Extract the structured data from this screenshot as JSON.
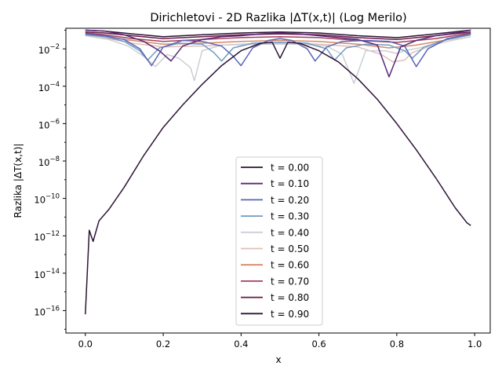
{
  "chart_data": {
    "type": "line",
    "title": "Dirichletovi - 2D Razlika |ΔT(x,t)| (Log Merilo)",
    "xlabel": "x",
    "ylabel": "Razlika |ΔT(x,t)|",
    "yscale": "log",
    "xlim": [
      -0.05,
      1.04
    ],
    "ylim_exp": [
      -17.2,
      -0.9
    ],
    "xticks": [
      {
        "v": 0.0,
        "label": "0.0"
      },
      {
        "v": 0.2,
        "label": "0.2"
      },
      {
        "v": 0.4,
        "label": "0.4"
      },
      {
        "v": 0.6,
        "label": "0.6"
      },
      {
        "v": 0.8,
        "label": "0.8"
      },
      {
        "v": 1.0,
        "label": "1.0"
      }
    ],
    "yticks": [
      {
        "exp": -16,
        "label": "10",
        "sup": "−16"
      },
      {
        "exp": -14,
        "label": "10",
        "sup": "−14"
      },
      {
        "exp": -12,
        "label": "10",
        "sup": "−12"
      },
      {
        "exp": -10,
        "label": "10",
        "sup": "−10"
      },
      {
        "exp": -8,
        "label": "10",
        "sup": "−8"
      },
      {
        "exp": -6,
        "label": "10",
        "sup": "−6"
      },
      {
        "exp": -4,
        "label": "10",
        "sup": "−4"
      },
      {
        "exp": -2,
        "label": "10",
        "sup": "−2"
      }
    ],
    "grid": false,
    "legend_position": "lower-center",
    "series": [
      {
        "name": "t = 0.00",
        "color": "#2d1436",
        "points": [
          [
            0.0,
            -16.2
          ],
          [
            0.01,
            -11.7
          ],
          [
            0.02,
            -12.3
          ],
          [
            0.035,
            -11.2
          ],
          [
            0.06,
            -10.6
          ],
          [
            0.1,
            -9.4
          ],
          [
            0.15,
            -7.7
          ],
          [
            0.2,
            -6.2
          ],
          [
            0.25,
            -5.0
          ],
          [
            0.3,
            -3.9
          ],
          [
            0.35,
            -2.9
          ],
          [
            0.4,
            -2.1
          ],
          [
            0.45,
            -1.7
          ],
          [
            0.48,
            -1.65
          ],
          [
            0.5,
            -2.5
          ],
          [
            0.52,
            -1.65
          ],
          [
            0.55,
            -1.7
          ],
          [
            0.6,
            -2.1
          ],
          [
            0.65,
            -2.7
          ],
          [
            0.7,
            -3.6
          ],
          [
            0.75,
            -4.7
          ],
          [
            0.8,
            -6.0
          ],
          [
            0.85,
            -7.4
          ],
          [
            0.9,
            -8.9
          ],
          [
            0.95,
            -10.5
          ],
          [
            0.98,
            -11.3
          ],
          [
            0.99,
            -11.45
          ]
        ]
      },
      {
        "name": "t = 0.10",
        "color": "#5a2778",
        "points": [
          [
            0.0,
            -1.0
          ],
          [
            0.05,
            -1.05
          ],
          [
            0.1,
            -1.25
          ],
          [
            0.15,
            -1.6
          ],
          [
            0.19,
            -2.1
          ],
          [
            0.22,
            -2.65
          ],
          [
            0.25,
            -1.85
          ],
          [
            0.3,
            -1.5
          ],
          [
            0.35,
            -1.35
          ],
          [
            0.4,
            -1.3
          ],
          [
            0.45,
            -1.2
          ],
          [
            0.5,
            -1.15
          ],
          [
            0.55,
            -1.2
          ],
          [
            0.6,
            -1.3
          ],
          [
            0.65,
            -1.4
          ],
          [
            0.7,
            -1.5
          ],
          [
            0.75,
            -1.8
          ],
          [
            0.78,
            -3.5
          ],
          [
            0.81,
            -1.9
          ],
          [
            0.85,
            -1.55
          ],
          [
            0.9,
            -1.3
          ],
          [
            0.95,
            -1.15
          ],
          [
            0.99,
            -1.0
          ]
        ]
      },
      {
        "name": "t = 0.20",
        "color": "#5b65b4",
        "points": [
          [
            0.0,
            -1.2
          ],
          [
            0.05,
            -1.3
          ],
          [
            0.1,
            -1.5
          ],
          [
            0.14,
            -2.0
          ],
          [
            0.17,
            -2.9
          ],
          [
            0.2,
            -1.9
          ],
          [
            0.25,
            -1.55
          ],
          [
            0.3,
            -1.6
          ],
          [
            0.35,
            -1.85
          ],
          [
            0.38,
            -2.4
          ],
          [
            0.4,
            -2.9
          ],
          [
            0.43,
            -1.95
          ],
          [
            0.47,
            -1.55
          ],
          [
            0.5,
            -1.45
          ],
          [
            0.53,
            -1.55
          ],
          [
            0.57,
            -2.0
          ],
          [
            0.59,
            -2.65
          ],
          [
            0.62,
            -1.9
          ],
          [
            0.66,
            -1.6
          ],
          [
            0.72,
            -1.55
          ],
          [
            0.78,
            -1.6
          ],
          [
            0.82,
            -1.85
          ],
          [
            0.85,
            -2.95
          ],
          [
            0.88,
            -2.0
          ],
          [
            0.93,
            -1.45
          ],
          [
            0.99,
            -1.2
          ]
        ]
      },
      {
        "name": "t = 0.30",
        "color": "#6e9bc4",
        "points": [
          [
            0.0,
            -1.25
          ],
          [
            0.05,
            -1.35
          ],
          [
            0.1,
            -1.6
          ],
          [
            0.14,
            -2.1
          ],
          [
            0.16,
            -2.6
          ],
          [
            0.19,
            -1.95
          ],
          [
            0.24,
            -1.7
          ],
          [
            0.3,
            -1.75
          ],
          [
            0.33,
            -2.2
          ],
          [
            0.35,
            -2.65
          ],
          [
            0.38,
            -1.95
          ],
          [
            0.43,
            -1.7
          ],
          [
            0.5,
            -1.65
          ],
          [
            0.57,
            -1.7
          ],
          [
            0.62,
            -2.0
          ],
          [
            0.64,
            -2.6
          ],
          [
            0.67,
            -1.95
          ],
          [
            0.72,
            -1.75
          ],
          [
            0.78,
            -1.8
          ],
          [
            0.82,
            -2.1
          ],
          [
            0.84,
            -2.5
          ],
          [
            0.87,
            -1.9
          ],
          [
            0.93,
            -1.5
          ],
          [
            0.99,
            -1.25
          ]
        ]
      },
      {
        "name": "t = 0.40",
        "color": "#cccfd5",
        "points": [
          [
            0.0,
            -1.3
          ],
          [
            0.06,
            -1.5
          ],
          [
            0.11,
            -1.85
          ],
          [
            0.15,
            -2.4
          ],
          [
            0.18,
            -2.95
          ],
          [
            0.21,
            -2.3
          ],
          [
            0.24,
            -2.5
          ],
          [
            0.27,
            -3.0
          ],
          [
            0.28,
            -3.7
          ],
          [
            0.3,
            -2.1
          ],
          [
            0.35,
            -1.8
          ],
          [
            0.45,
            -1.75
          ],
          [
            0.55,
            -1.75
          ],
          [
            0.62,
            -1.85
          ],
          [
            0.66,
            -2.3
          ],
          [
            0.69,
            -3.85
          ],
          [
            0.72,
            -2.1
          ],
          [
            0.77,
            -2.1
          ],
          [
            0.8,
            -2.25
          ],
          [
            0.82,
            -2.1
          ],
          [
            0.87,
            -1.9
          ],
          [
            0.93,
            -1.6
          ],
          [
            0.99,
            -1.35
          ]
        ]
      },
      {
        "name": "t = 0.50",
        "color": "#dfc0b8",
        "points": [
          [
            0.0,
            -1.3
          ],
          [
            0.06,
            -1.45
          ],
          [
            0.12,
            -1.7
          ],
          [
            0.2,
            -1.9
          ],
          [
            0.3,
            -1.85
          ],
          [
            0.4,
            -1.75
          ],
          [
            0.5,
            -1.7
          ],
          [
            0.6,
            -1.75
          ],
          [
            0.7,
            -1.9
          ],
          [
            0.76,
            -2.3
          ],
          [
            0.79,
            -2.7
          ],
          [
            0.82,
            -2.6
          ],
          [
            0.84,
            -2.2
          ],
          [
            0.9,
            -1.75
          ],
          [
            0.95,
            -1.5
          ],
          [
            0.99,
            -1.35
          ]
        ]
      },
      {
        "name": "t = 0.60",
        "color": "#d38a6a",
        "points": [
          [
            0.0,
            -1.25
          ],
          [
            0.05,
            -1.35
          ],
          [
            0.12,
            -1.55
          ],
          [
            0.2,
            -1.75
          ],
          [
            0.3,
            -1.7
          ],
          [
            0.4,
            -1.6
          ],
          [
            0.5,
            -1.55
          ],
          [
            0.6,
            -1.6
          ],
          [
            0.7,
            -1.75
          ],
          [
            0.78,
            -1.95
          ],
          [
            0.85,
            -1.8
          ],
          [
            0.92,
            -1.55
          ],
          [
            0.99,
            -1.25
          ]
        ]
      },
      {
        "name": "t = 0.70",
        "color": "#a53f5a",
        "points": [
          [
            0.0,
            -1.15
          ],
          [
            0.05,
            -1.25
          ],
          [
            0.12,
            -1.45
          ],
          [
            0.2,
            -1.6
          ],
          [
            0.3,
            -1.5
          ],
          [
            0.4,
            -1.4
          ],
          [
            0.5,
            -1.35
          ],
          [
            0.6,
            -1.4
          ],
          [
            0.7,
            -1.55
          ],
          [
            0.8,
            -1.65
          ],
          [
            0.9,
            -1.45
          ],
          [
            0.99,
            -1.15
          ]
        ]
      },
      {
        "name": "t = 0.80",
        "color": "#6a1a47",
        "points": [
          [
            0.0,
            -1.1
          ],
          [
            0.05,
            -1.15
          ],
          [
            0.12,
            -1.3
          ],
          [
            0.2,
            -1.45
          ],
          [
            0.3,
            -1.35
          ],
          [
            0.4,
            -1.25
          ],
          [
            0.5,
            -1.2
          ],
          [
            0.6,
            -1.25
          ],
          [
            0.7,
            -1.4
          ],
          [
            0.8,
            -1.5
          ],
          [
            0.9,
            -1.3
          ],
          [
            0.99,
            -1.1
          ]
        ]
      },
      {
        "name": "t = 0.90",
        "color": "#2d1436",
        "points": [
          [
            0.0,
            -1.0
          ],
          [
            0.05,
            -1.05
          ],
          [
            0.12,
            -1.2
          ],
          [
            0.2,
            -1.35
          ],
          [
            0.3,
            -1.25
          ],
          [
            0.4,
            -1.15
          ],
          [
            0.5,
            -1.1
          ],
          [
            0.6,
            -1.15
          ],
          [
            0.7,
            -1.3
          ],
          [
            0.8,
            -1.4
          ],
          [
            0.9,
            -1.2
          ],
          [
            0.99,
            -1.0
          ]
        ]
      }
    ]
  }
}
